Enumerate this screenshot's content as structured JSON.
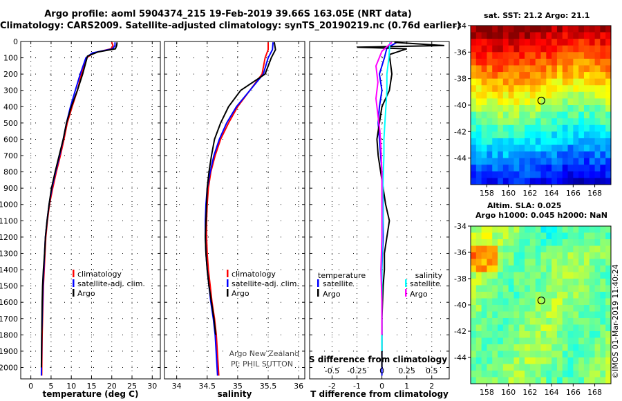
{
  "header": {
    "title_line1": "Argo profile: aoml 5904374_215 19-Feb-2019 39.66S 163.05E (NRT data)",
    "title_line2": "Climatology: CARS2009. Satellite-adjusted climatology: synTS_20190219.nc (0.76d earlier)"
  },
  "colors": {
    "climatology": "#ff0000",
    "satellite": "#0000ff",
    "argo": "#000000",
    "argo_salinity": "#ff00ff",
    "satellite_salinity": "#00ffff"
  },
  "chart_data": [
    {
      "type": "line",
      "xlabel": "temperature (deg C)",
      "xticks": [
        "0",
        "5",
        "10",
        "15",
        "20",
        "25",
        "30"
      ],
      "xlim": [
        -2.5,
        32
      ],
      "ylim": [
        2070,
        0
      ],
      "yticks": [
        "0",
        "100",
        "200",
        "300",
        "400",
        "500",
        "600",
        "700",
        "800",
        "900",
        "1000",
        "1100",
        "1200",
        "1300",
        "1400",
        "1500",
        "1600",
        "1700",
        "1800",
        "1900",
        "2000"
      ],
      "legend": [
        "climatology",
        "satellite-adj. clim.",
        "Argo"
      ],
      "series": [
        {
          "name": "climatology",
          "color": "#ff0000",
          "x": [
            20.0,
            20.3,
            19.8,
            15.5,
            13.8,
            12.5,
            11.5,
            10.2,
            9.0,
            8.2,
            7.3,
            6.3,
            5.4,
            4.6,
            4.1,
            3.7,
            3.5,
            3.3,
            3.1,
            3.0,
            2.8,
            2.7
          ],
          "y": [
            5,
            25,
            45,
            70,
            100,
            200,
            300,
            400,
            500,
            600,
            700,
            800,
            900,
            1000,
            1100,
            1200,
            1300,
            1400,
            1500,
            1600,
            1800,
            2050
          ]
        },
        {
          "name": "satellite-adj. clim.",
          "color": "#0000ff",
          "x": [
            20.8,
            20.8,
            20.2,
            15.2,
            13.6,
            12.2,
            11.0,
            9.8,
            8.8,
            8.0,
            7.1,
            6.1,
            5.2,
            4.5,
            4.0,
            3.6,
            3.4,
            3.2,
            3.0,
            2.9,
            2.7,
            2.6
          ],
          "y": [
            5,
            25,
            45,
            70,
            100,
            200,
            300,
            400,
            500,
            600,
            700,
            800,
            900,
            1000,
            1100,
            1200,
            1300,
            1400,
            1500,
            1600,
            1800,
            2050
          ]
        },
        {
          "name": "Argo",
          "color": "#000000",
          "x": [
            21.3,
            21.2,
            20.9,
            16.5,
            14.0,
            12.8,
            11.5,
            10.0,
            8.8,
            8.0,
            7.0,
            6.0,
            5.1,
            4.5,
            4.0,
            3.6,
            3.4,
            3.1,
            2.9,
            2.8,
            2.6
          ],
          "y": [
            5,
            25,
            45,
            65,
            90,
            200,
            300,
            400,
            500,
            600,
            700,
            800,
            900,
            1000,
            1100,
            1200,
            1300,
            1400,
            1500,
            1600,
            2000
          ]
        }
      ]
    },
    {
      "type": "line",
      "xlabel": "salinity",
      "xticks": [
        "34",
        "34.5",
        "35",
        "35.5",
        "36"
      ],
      "xlim": [
        33.8,
        36.1
      ],
      "ylim": [
        2070,
        0
      ],
      "legend": [
        "climatology",
        "satellite-adj. clim.",
        "Argo"
      ],
      "annotation": [
        "Argo New Zealand",
        "PI: PHIL SUTTON"
      ],
      "series": [
        {
          "name": "climatology",
          "color": "#ff0000",
          "x": [
            35.5,
            35.5,
            35.45,
            35.4,
            35.2,
            35.0,
            34.85,
            34.72,
            34.63,
            34.56,
            34.52,
            34.5,
            34.49,
            34.49,
            34.5,
            34.52,
            34.55,
            34.58,
            34.62,
            34.65,
            34.69
          ],
          "y": [
            5,
            50,
            100,
            200,
            300,
            400,
            500,
            600,
            700,
            800,
            900,
            1000,
            1100,
            1200,
            1300,
            1400,
            1500,
            1600,
            1700,
            1800,
            2050
          ]
        },
        {
          "name": "satellite-adj. clim.",
          "color": "#0000ff",
          "x": [
            35.58,
            35.57,
            35.5,
            35.42,
            35.2,
            34.98,
            34.82,
            34.7,
            34.61,
            34.55,
            34.5,
            34.48,
            34.47,
            34.47,
            34.48,
            34.5,
            34.53,
            34.56,
            34.6,
            34.63,
            34.67
          ],
          "y": [
            5,
            50,
            100,
            200,
            300,
            400,
            500,
            600,
            700,
            800,
            900,
            1000,
            1100,
            1200,
            1300,
            1400,
            1500,
            1600,
            1700,
            1800,
            2050
          ]
        },
        {
          "name": "Argo",
          "color": "#000000",
          "x": [
            35.6,
            35.62,
            35.55,
            35.45,
            35.05,
            34.85,
            34.72,
            34.62,
            34.57,
            34.53,
            34.5,
            34.49,
            34.48,
            34.47,
            34.48,
            34.5,
            34.53,
            34.57,
            34.61,
            34.64
          ],
          "y": [
            5,
            50,
            100,
            200,
            300,
            400,
            500,
            600,
            700,
            800,
            900,
            1000,
            1100,
            1200,
            1300,
            1400,
            1500,
            1600,
            1700,
            1800
          ]
        }
      ]
    },
    {
      "type": "line",
      "xlabel": "T difference from climatology",
      "xticks": [
        "-2",
        "-1",
        "0",
        "1",
        "2"
      ],
      "xlim": [
        -2.9,
        2.7
      ],
      "s_label": "S difference from climatology",
      "s_ticks": [
        "-0.5",
        "-0.25",
        "0",
        "0.25",
        "0.5"
      ],
      "s_lim": [
        -0.725,
        0.675
      ],
      "ylim": [
        2070,
        0
      ],
      "legend_left_title": "temperature",
      "legend_left": [
        "satellite",
        "Argo"
      ],
      "legend_right_title": "salinity",
      "legend_right": [
        "satellite",
        "Argo"
      ],
      "series": [
        {
          "name": "temperature satellite",
          "color": "#0000ff",
          "x": [
            0.6,
            0.2,
            0.1,
            -0.1,
            0.0,
            -0.1,
            -0.15,
            -0.1,
            -0.05,
            0.0,
            0.05,
            0.05,
            0.05,
            0.05,
            0.02,
            0.0,
            0.0,
            0.0,
            0.0
          ],
          "y": [
            5,
            40,
            100,
            200,
            300,
            400,
            500,
            600,
            700,
            800,
            900,
            1000,
            1100,
            1200,
            1300,
            1400,
            1600,
            1800,
            2050
          ]
        },
        {
          "name": "temperature Argo",
          "color": "#000000",
          "x": [
            0.5,
            2.5,
            -1.0,
            1.0,
            0.3,
            0.4,
            0.3,
            0.0,
            -0.1,
            -0.2,
            -0.15,
            -0.05,
            0.15,
            0.3,
            0.2,
            0.1,
            0.1,
            0.05,
            0.0,
            0.0
          ],
          "y": [
            5,
            25,
            35,
            45,
            80,
            200,
            300,
            400,
            500,
            600,
            700,
            800,
            1000,
            1100,
            1200,
            1300,
            1400,
            1500,
            1700,
            2000
          ]
        },
        {
          "name": "salinity satellite",
          "color": "#00ffff",
          "x": [
            0.08,
            0.07,
            0.05,
            0.05,
            0.04,
            0.03,
            0.02,
            0.02,
            0.01,
            0.01,
            0.0,
            0.0,
            0.0
          ],
          "y": [
            5,
            100,
            200,
            300,
            400,
            500,
            600,
            700,
            900,
            1100,
            1300,
            1600,
            1900
          ]
        },
        {
          "name": "salinity Argo",
          "color": "#ff00ff",
          "x": [
            0.1,
            0.0,
            -0.06,
            -0.04,
            -0.06,
            -0.04,
            -0.02,
            -0.01,
            0.0,
            0.0,
            0.0,
            -0.01,
            0.0,
            0.0
          ],
          "y": [
            5,
            60,
            150,
            250,
            350,
            450,
            550,
            650,
            800,
            1000,
            1200,
            1400,
            1600,
            1800
          ]
        }
      ]
    },
    {
      "type": "heatmap",
      "title": "sat. SST: 21.2 Argo: 21.1",
      "xticks": [
        "158",
        "160",
        "162",
        "164",
        "166",
        "168"
      ],
      "yticks": [
        "-34",
        "-36",
        "-38",
        "-40",
        "-42",
        "-44"
      ],
      "xlim": [
        156.5,
        169.5
      ],
      "ylim": [
        -46,
        -34
      ],
      "marker": {
        "lon": 163.05,
        "lat": -39.66
      }
    },
    {
      "type": "heatmap",
      "title_line1": "Altim. SLA: 0.025",
      "title_line2": "Argo h1000: 0.045 h2000: NaN",
      "xticks": [
        "158",
        "160",
        "162",
        "164",
        "166",
        "168"
      ],
      "yticks": [
        "-34",
        "-36",
        "-38",
        "-40",
        "-42",
        "-44"
      ],
      "xlim": [
        156.5,
        169.5
      ],
      "ylim": [
        -46,
        -34
      ],
      "marker": {
        "lon": 163.05,
        "lat": -39.66
      }
    }
  ],
  "footer": {
    "stamp": "©IMOS 01-Mar-2019 11:40:24"
  }
}
